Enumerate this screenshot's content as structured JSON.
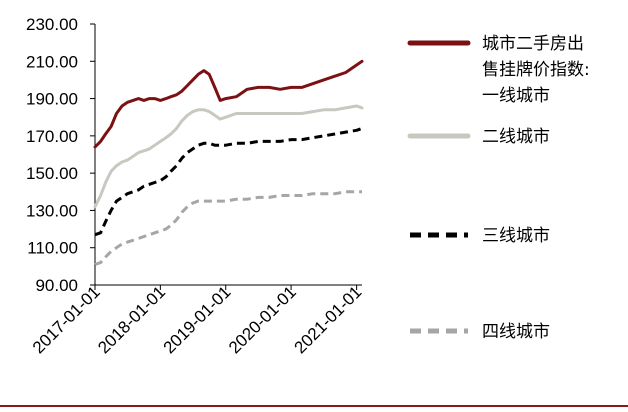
{
  "chart_data": {
    "type": "line",
    "title": "",
    "xlabel": "",
    "ylabel": "",
    "ylim": [
      90,
      230
    ],
    "yticks": [
      "90.00",
      "110.00",
      "130.00",
      "150.00",
      "170.00",
      "190.00",
      "210.00",
      "230.00"
    ],
    "xlim": [
      "2017-01-01",
      "2021-01-31"
    ],
    "xticks": [
      "2017-01-01",
      "2018-01-01",
      "2019-01-01",
      "2020-01-01",
      "2021-01-01"
    ],
    "grid": false,
    "legend_position": "right",
    "series": [
      {
        "name": "城市二手房出售挂牌价指数:一线城市",
        "color": "#7b1113",
        "dash": "solid",
        "x": [
          "2017-01-01",
          "2017-02-01",
          "2017-03-01",
          "2017-04-01",
          "2017-05-01",
          "2017-06-01",
          "2017-07-01",
          "2017-08-01",
          "2017-09-01",
          "2017-10-01",
          "2017-11-01",
          "2017-12-01",
          "2018-01-01",
          "2018-02-01",
          "2018-03-01",
          "2018-04-01",
          "2018-05-01",
          "2018-06-01",
          "2018-07-01",
          "2018-08-01",
          "2018-09-01",
          "2018-10-01",
          "2018-11-01",
          "2018-12-01",
          "2019-01-01",
          "2019-03-01",
          "2019-05-01",
          "2019-07-01",
          "2019-09-01",
          "2019-11-01",
          "2020-01-01",
          "2020-03-01",
          "2020-05-01",
          "2020-07-01",
          "2020-09-01",
          "2020-11-01",
          "2021-01-01",
          "2021-01-31"
        ],
        "y": [
          164,
          167,
          171,
          175,
          182,
          186,
          188,
          189,
          190,
          189,
          190,
          190,
          189,
          190,
          191,
          192,
          194,
          197,
          200,
          203,
          205,
          203,
          196,
          189,
          190,
          191,
          195,
          196,
          196,
          195,
          196,
          196,
          198,
          200,
          202,
          204,
          208,
          210
        ]
      },
      {
        "name": "二线城市",
        "color": "#c8c8c0",
        "dash": "solid",
        "x": [
          "2017-01-01",
          "2017-02-01",
          "2017-03-01",
          "2017-04-01",
          "2017-05-01",
          "2017-06-01",
          "2017-07-01",
          "2017-08-01",
          "2017-09-01",
          "2017-10-01",
          "2017-11-01",
          "2017-12-01",
          "2018-01-01",
          "2018-02-01",
          "2018-03-01",
          "2018-04-01",
          "2018-05-01",
          "2018-06-01",
          "2018-07-01",
          "2018-08-01",
          "2018-09-01",
          "2018-10-01",
          "2018-11-01",
          "2018-12-01",
          "2019-01-01",
          "2019-03-01",
          "2019-05-01",
          "2019-07-01",
          "2019-09-01",
          "2019-11-01",
          "2020-01-01",
          "2020-03-01",
          "2020-05-01",
          "2020-07-01",
          "2020-09-01",
          "2020-11-01",
          "2021-01-01",
          "2021-01-31"
        ],
        "y": [
          132,
          138,
          145,
          151,
          154,
          156,
          157,
          159,
          161,
          162,
          163,
          165,
          167,
          169,
          171,
          174,
          178,
          181,
          183,
          184,
          184,
          183,
          181,
          179,
          180,
          182,
          182,
          182,
          182,
          182,
          182,
          182,
          183,
          184,
          184,
          185,
          186,
          185
        ]
      },
      {
        "name": "三线城市",
        "color": "#000000",
        "dash": "dashed",
        "x": [
          "2017-01-01",
          "2017-02-01",
          "2017-03-01",
          "2017-04-01",
          "2017-05-01",
          "2017-06-01",
          "2017-07-01",
          "2017-08-01",
          "2017-09-01",
          "2017-10-01",
          "2017-11-01",
          "2017-12-01",
          "2018-01-01",
          "2018-02-01",
          "2018-03-01",
          "2018-04-01",
          "2018-05-01",
          "2018-06-01",
          "2018-07-01",
          "2018-08-01",
          "2018-09-01",
          "2018-10-01",
          "2018-11-01",
          "2018-12-01",
          "2019-01-01",
          "2019-03-01",
          "2019-05-01",
          "2019-07-01",
          "2019-09-01",
          "2019-11-01",
          "2020-01-01",
          "2020-03-01",
          "2020-05-01",
          "2020-07-01",
          "2020-09-01",
          "2020-11-01",
          "2021-01-01",
          "2021-01-31"
        ],
        "y": [
          117,
          118,
          124,
          130,
          135,
          137,
          139,
          140,
          141,
          143,
          144,
          145,
          146,
          148,
          151,
          154,
          158,
          161,
          163,
          165,
          166,
          166,
          165,
          165,
          165,
          166,
          166,
          167,
          167,
          167,
          168,
          168,
          169,
          170,
          171,
          172,
          173,
          174
        ]
      },
      {
        "name": "四线城市",
        "color": "#a6a6a6",
        "dash": "dashed",
        "x": [
          "2017-01-01",
          "2017-02-01",
          "2017-03-01",
          "2017-04-01",
          "2017-05-01",
          "2017-06-01",
          "2017-07-01",
          "2017-08-01",
          "2017-09-01",
          "2017-10-01",
          "2017-11-01",
          "2017-12-01",
          "2018-01-01",
          "2018-02-01",
          "2018-03-01",
          "2018-04-01",
          "2018-05-01",
          "2018-06-01",
          "2018-07-01",
          "2018-08-01",
          "2018-09-01",
          "2018-10-01",
          "2018-11-01",
          "2018-12-01",
          "2019-01-01",
          "2019-03-01",
          "2019-05-01",
          "2019-07-01",
          "2019-09-01",
          "2019-11-01",
          "2020-01-01",
          "2020-03-01",
          "2020-05-01",
          "2020-07-01",
          "2020-09-01",
          "2020-11-01",
          "2021-01-01",
          "2021-01-31"
        ],
        "y": [
          101,
          102,
          105,
          108,
          110,
          112,
          113,
          114,
          115,
          116,
          117,
          118,
          119,
          120,
          122,
          125,
          129,
          132,
          134,
          135,
          135,
          135,
          135,
          135,
          135,
          136,
          136,
          137,
          137,
          138,
          138,
          138,
          139,
          139,
          139,
          140,
          140,
          140
        ]
      }
    ]
  }
}
